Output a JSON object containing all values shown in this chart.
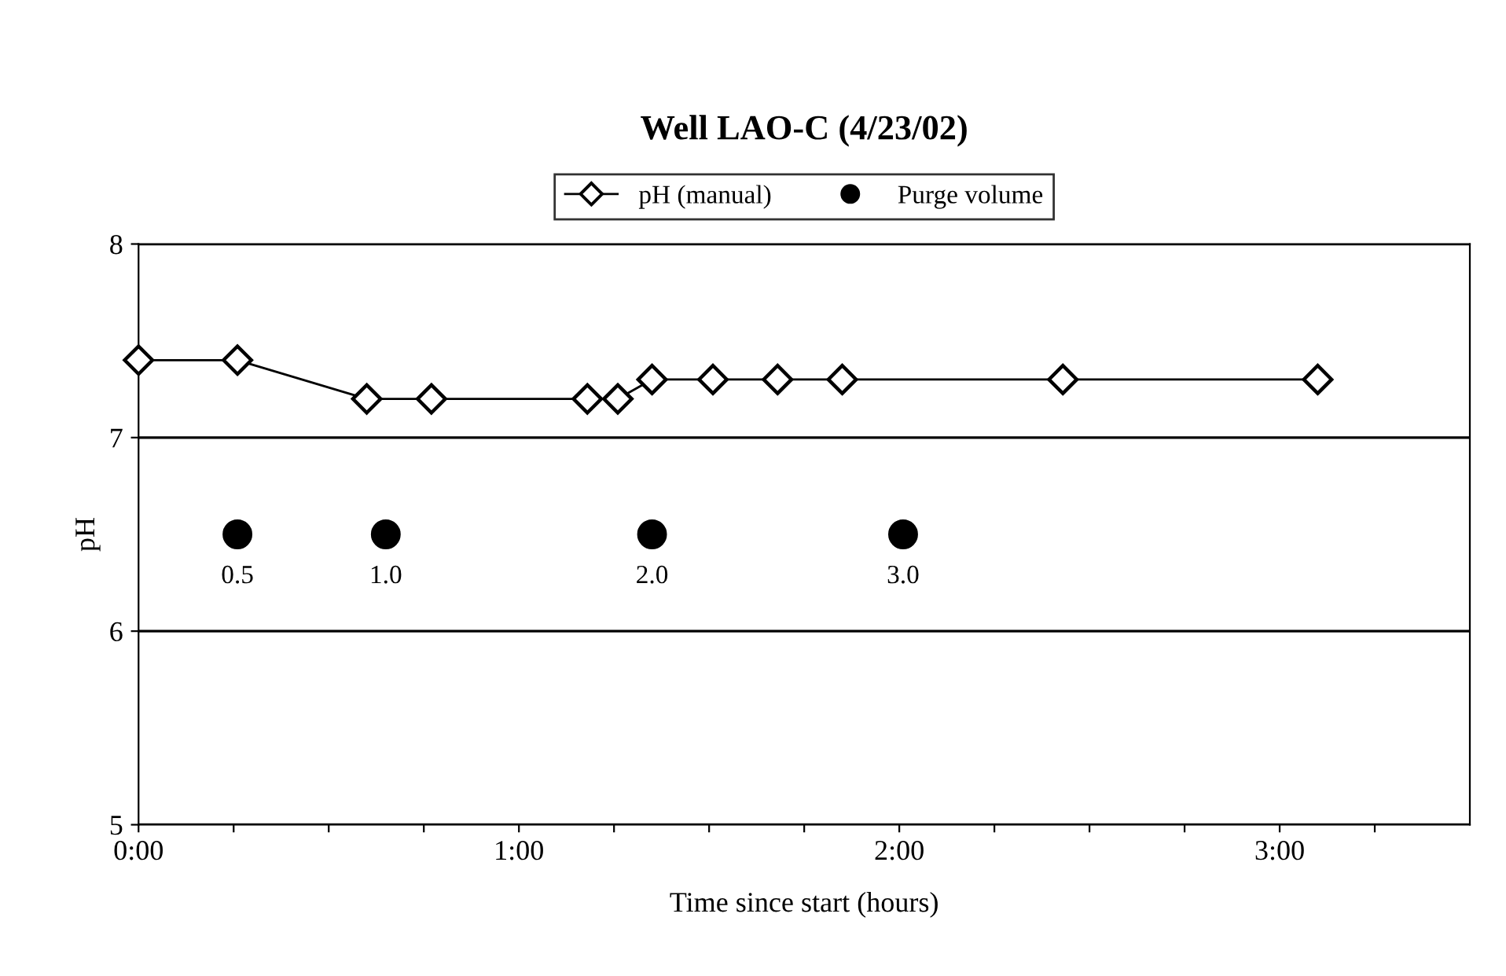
{
  "chart_data": {
    "type": "line",
    "title": "Well LAO-C (4/23/02)",
    "xlabel": "Time since start (hours)",
    "ylabel": "pH",
    "xlim": [
      0,
      3.5
    ],
    "ylim": [
      5,
      8
    ],
    "yticks": [
      5,
      6,
      7,
      8
    ],
    "xticks": [
      {
        "value": 0,
        "label": "0:00"
      },
      {
        "value": 0.25,
        "label": null
      },
      {
        "value": 0.5,
        "label": null
      },
      {
        "value": 0.75,
        "label": null
      },
      {
        "value": 1,
        "label": "1:00"
      },
      {
        "value": 1.25,
        "label": null
      },
      {
        "value": 1.5,
        "label": null
      },
      {
        "value": 1.75,
        "label": null
      },
      {
        "value": 2,
        "label": "2:00"
      },
      {
        "value": 2.25,
        "label": null
      },
      {
        "value": 2.5,
        "label": null
      },
      {
        "value": 2.75,
        "label": null
      },
      {
        "value": 3,
        "label": "3:00"
      },
      {
        "value": 3.25,
        "label": null
      }
    ],
    "grid": "y",
    "legend": "top",
    "series": [
      {
        "name": "pH (manual)",
        "marker": "diamond",
        "color": "#000000",
        "x": [
          0,
          0.26,
          0.6,
          0.77,
          1.18,
          1.26,
          1.35,
          1.51,
          1.68,
          1.85,
          2.43,
          3.1
        ],
        "values": [
          7.4,
          7.4,
          7.2,
          7.2,
          7.2,
          7.2,
          7.3,
          7.3,
          7.3,
          7.3,
          7.3,
          7.3
        ]
      },
      {
        "name": "Purge volume",
        "type": "scatter",
        "marker": "circle",
        "color": "#000000",
        "x": [
          0.26,
          0.65,
          1.35,
          2.01
        ],
        "values": [
          6.5,
          6.5,
          6.5,
          6.5
        ]
      }
    ],
    "annotations": [
      {
        "text": "0.5",
        "x": 0.26,
        "y": 6.5
      },
      {
        "text": "1.0",
        "x": 0.65,
        "y": 6.5
      },
      {
        "text": "2.0",
        "x": 1.35,
        "y": 6.5
      },
      {
        "text": "3.0",
        "x": 2.01,
        "y": 6.5
      }
    ]
  }
}
